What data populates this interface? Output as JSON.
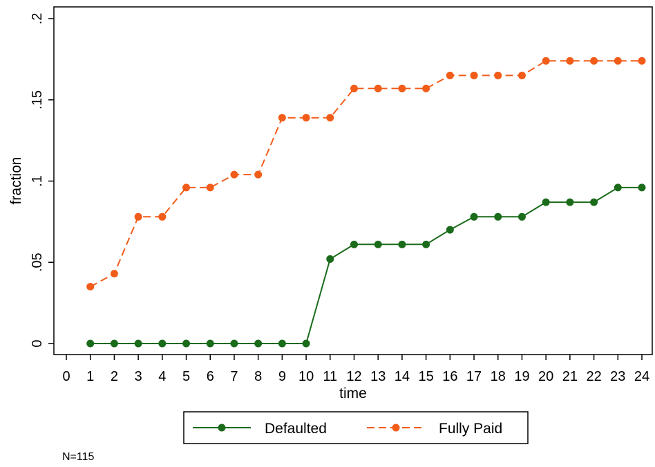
{
  "chart_data": {
    "type": "line",
    "xlabel": "time",
    "ylabel": "fraction",
    "xlim": [
      0,
      24
    ],
    "ylim": [
      0,
      0.2
    ],
    "x_ticks": [
      0,
      1,
      2,
      3,
      4,
      5,
      6,
      7,
      8,
      9,
      10,
      11,
      12,
      13,
      14,
      15,
      16,
      17,
      18,
      19,
      20,
      21,
      22,
      23,
      24
    ],
    "x_tick_labels": [
      "0",
      "1",
      "2",
      "3",
      "4",
      "5",
      "6",
      "7",
      "8",
      "9",
      "10",
      "11",
      "12",
      "13",
      "14",
      "15",
      "16",
      "17",
      "18",
      "19",
      "20",
      "21",
      "22",
      "23",
      "24"
    ],
    "y_ticks": [
      0,
      0.05,
      0.1,
      0.15,
      0.2
    ],
    "y_tick_labels": [
      "0",
      ".05",
      ".1",
      ".15",
      ".2"
    ],
    "grid": false,
    "legend_position": "bottom",
    "x": [
      1,
      2,
      3,
      4,
      5,
      6,
      7,
      8,
      9,
      10,
      11,
      12,
      13,
      14,
      15,
      16,
      17,
      18,
      19,
      20,
      21,
      22,
      23,
      24
    ],
    "series": [
      {
        "name": "Defaulted",
        "color": "#1a6b1a",
        "line_style": "solid",
        "values": [
          0,
          0,
          0,
          0,
          0,
          0,
          0,
          0,
          0,
          0,
          0.052,
          0.061,
          0.061,
          0.061,
          0.061,
          0.07,
          0.078,
          0.078,
          0.078,
          0.087,
          0.087,
          0.087,
          0.096,
          0.096
        ]
      },
      {
        "name": "Fully Paid",
        "color": "#f25c19",
        "line_style": "dashed",
        "values": [
          0.035,
          0.043,
          0.078,
          0.078,
          0.096,
          0.096,
          0.104,
          0.104,
          0.139,
          0.139,
          0.139,
          0.157,
          0.157,
          0.157,
          0.157,
          0.165,
          0.165,
          0.165,
          0.165,
          0.174,
          0.174,
          0.174,
          0.174,
          0.174
        ]
      }
    ],
    "note": "N=115"
  }
}
